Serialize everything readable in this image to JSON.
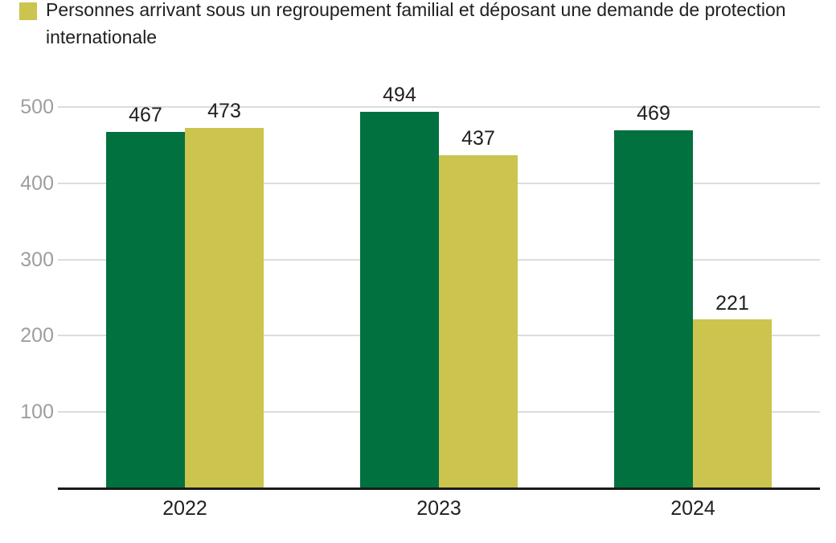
{
  "legend": {
    "swatch_color": "#CBC44E",
    "lines": [
      "Personnes arrivant sous un regroupement familial et déposant une demande de protection",
      "internationale"
    ]
  },
  "chart_data": {
    "type": "bar",
    "categories": [
      "2022",
      "2023",
      "2024"
    ],
    "series": [
      {
        "color": "#00713F",
        "values": [
          467,
          494,
          469
        ]
      },
      {
        "name": "Personnes arrivant sous un regroupement familial et déposant une demande de protection internationale",
        "color": "#CBC44E",
        "values": [
          473,
          437,
          221
        ]
      }
    ],
    "title": "",
    "xlabel": "",
    "ylabel": "",
    "ylim": [
      0,
      500
    ],
    "yticks": [
      100,
      200,
      300,
      400,
      500
    ],
    "grid": true,
    "legend_position": "top",
    "value_labels_shown": true
  },
  "colors": {
    "green_series": "#00713F",
    "yellow_series": "#CBC44E",
    "axis_line": "#1a1a1a",
    "gridline": "#dcdcdc",
    "tick_label": "#9e9e9e",
    "value_label": "#212121",
    "category_label": "#212121",
    "background": "#ffffff"
  }
}
